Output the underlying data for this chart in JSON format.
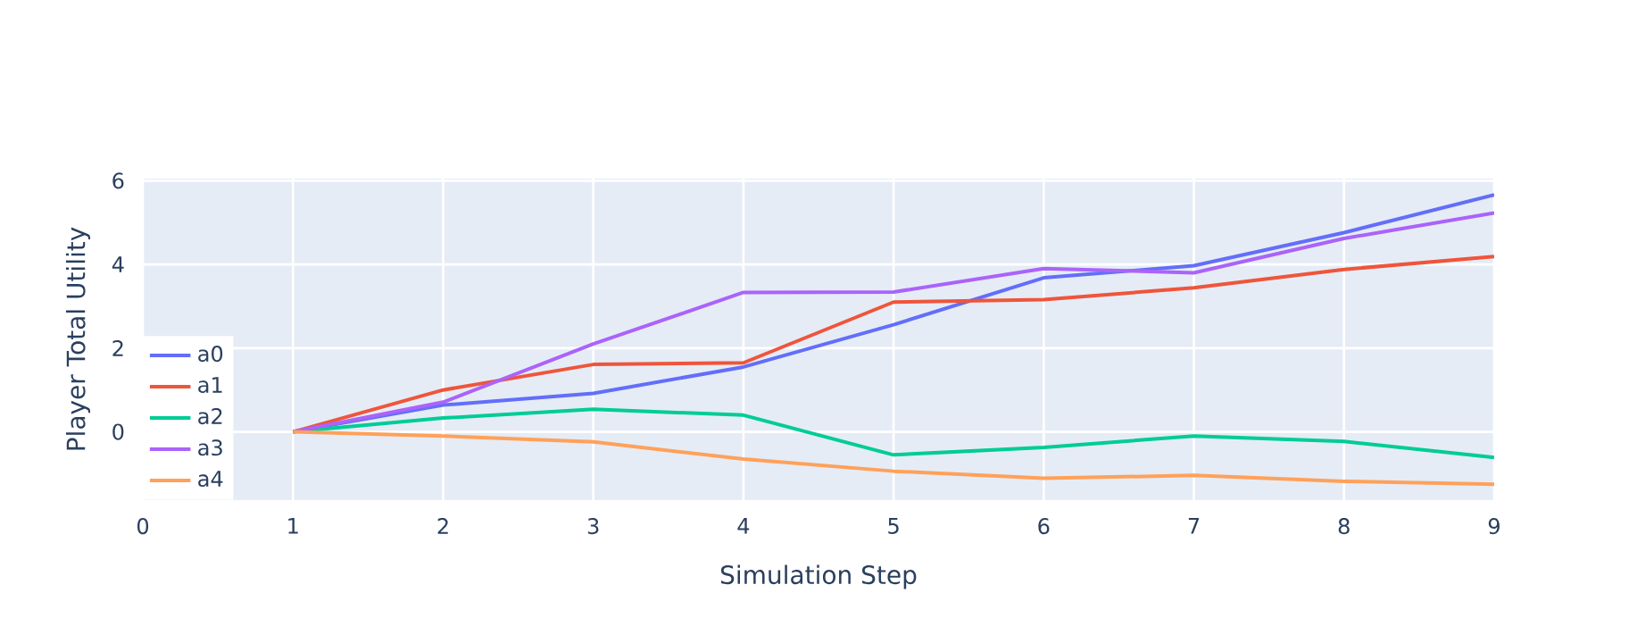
{
  "chart_data": {
    "type": "line",
    "xlabel": "Simulation Step",
    "ylabel": "Player Total Utility",
    "x": [
      1,
      2,
      3,
      4,
      5,
      6,
      7,
      8,
      9
    ],
    "series": [
      {
        "name": "a0",
        "color": "#636efa",
        "values": [
          0,
          0.64,
          0.92,
          1.55,
          2.56,
          3.68,
          3.97,
          4.76,
          5.66
        ]
      },
      {
        "name": "a1",
        "color": "#ef553b",
        "values": [
          0,
          1.0,
          1.61,
          1.65,
          3.1,
          3.16,
          3.44,
          3.88,
          4.19
        ]
      },
      {
        "name": "a2",
        "color": "#00cc96",
        "values": [
          0,
          0.33,
          0.54,
          0.4,
          -0.55,
          -0.37,
          -0.1,
          -0.23,
          -0.61
        ]
      },
      {
        "name": "a3",
        "color": "#ab63fa",
        "values": [
          0,
          0.71,
          2.1,
          3.33,
          3.34,
          3.9,
          3.8,
          4.62,
          5.23
        ]
      },
      {
        "name": "a4",
        "color": "#ffa15a",
        "values": [
          0,
          -0.1,
          -0.24,
          -0.65,
          -0.94,
          -1.11,
          -1.04,
          -1.18,
          -1.25
        ]
      }
    ],
    "xlim": [
      0,
      9
    ],
    "ylim": [
      -1.63,
      6.05
    ],
    "xticks": [
      0,
      1,
      2,
      3,
      4,
      5,
      6,
      7,
      8,
      9
    ],
    "yticks": [
      0,
      2,
      4,
      6
    ],
    "grid": true,
    "legend": "bottom left",
    "marker": "none",
    "line_style": "solid"
  }
}
